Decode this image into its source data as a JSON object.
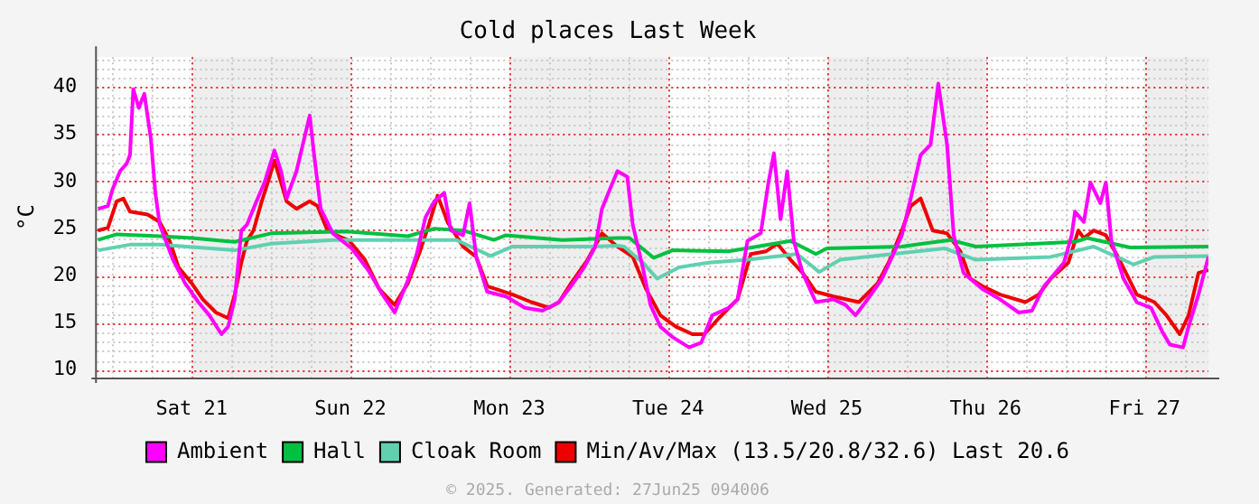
{
  "chart_data": {
    "type": "line",
    "title": "Cold places Last Week",
    "ylabel": "°C",
    "xlim": [
      "2025-06-20T09:40",
      "2025-06-27T09:40"
    ],
    "xticks": [
      {
        "value": "2025-06-21",
        "label": "Sat 21"
      },
      {
        "value": "2025-06-22",
        "label": "Sun 22"
      },
      {
        "value": "2025-06-23",
        "label": "Mon 23"
      },
      {
        "value": "2025-06-24",
        "label": "Tue 24"
      },
      {
        "value": "2025-06-25",
        "label": "Wed 25"
      },
      {
        "value": "2025-06-26",
        "label": "Thu 26"
      },
      {
        "value": "2025-06-27",
        "label": "Fri 27"
      }
    ],
    "ylim": [
      9.2,
      43.2
    ],
    "yticks": [
      10,
      15,
      20,
      25,
      30,
      35,
      40
    ],
    "grid": true,
    "legend": "bottom",
    "marker": "none",
    "line_style": "solid",
    "bands": [
      {
        "axis": "x",
        "from": "2025-06-21",
        "to": "2025-06-22",
        "color": "#eeeeee"
      },
      {
        "axis": "x",
        "from": "2025-06-23",
        "to": "2025-06-24",
        "color": "#eeeeee"
      },
      {
        "axis": "x",
        "from": "2025-06-25",
        "to": "2025-06-26",
        "color": "#eeeeee"
      },
      {
        "axis": "x",
        "from": "2025-06-27",
        "to": "2025-06-27T09:40",
        "color": "#eeeeee"
      }
    ],
    "annotations": [
      "© 2025. Generated: 27Jun25 094006"
    ],
    "series": [
      {
        "name": "Ambient",
        "color": "#ff00ff",
        "x": [
          "2025-06-20T09:50",
          "2025-06-20T11:20",
          "2025-06-20T12:00",
          "2025-06-20T13:10",
          "2025-06-20T14:10",
          "2025-06-20T14:40",
          "2025-06-20T15:10",
          "2025-06-20T16:00",
          "2025-06-20T16:50",
          "2025-06-20T17:50",
          "2025-06-20T18:30",
          "2025-06-20T19:10",
          "2025-06-20T21:10",
          "2025-06-20T23:00",
          "2025-06-21T01:00",
          "2025-06-21T02:40",
          "2025-06-21T04:30",
          "2025-06-21T05:30",
          "2025-06-21T06:30",
          "2025-06-21T07:30",
          "2025-06-21T08:20",
          "2025-06-21T09:40",
          "2025-06-21T11:00",
          "2025-06-21T12:30",
          "2025-06-21T13:30",
          "2025-06-21T14:20",
          "2025-06-21T15:50",
          "2025-06-21T17:50",
          "2025-06-21T18:30",
          "2025-06-21T19:30",
          "2025-06-21T21:20",
          "2025-06-22T00:10",
          "2025-06-22T02:40",
          "2025-06-22T04:50",
          "2025-06-22T06:40",
          "2025-06-22T08:40",
          "2025-06-22T10:00",
          "2025-06-22T11:20",
          "2025-06-22T12:40",
          "2025-06-22T14:10",
          "2025-06-22T15:10",
          "2025-06-22T17:00",
          "2025-06-22T18:00",
          "2025-06-22T19:00",
          "2025-06-22T20:40",
          "2025-06-22T23:30",
          "2025-06-23T02:20",
          "2025-06-23T05:00",
          "2025-06-23T07:30",
          "2025-06-23T09:20",
          "2025-06-23T11:20",
          "2025-06-23T13:00",
          "2025-06-23T14:00",
          "2025-06-23T15:20",
          "2025-06-23T16:20",
          "2025-06-23T17:50",
          "2025-06-23T18:40",
          "2025-06-23T20:10",
          "2025-06-23T21:20",
          "2025-06-23T22:50",
          "2025-06-24T00:40",
          "2025-06-24T03:10",
          "2025-06-24T05:00",
          "2025-06-24T06:40",
          "2025-06-24T09:10",
          "2025-06-24T10:30",
          "2025-06-24T12:00",
          "2025-06-24T14:00",
          "2025-06-24T15:10",
          "2025-06-24T16:00",
          "2025-06-24T17:00",
          "2025-06-24T18:00",
          "2025-06-24T19:00",
          "2025-06-24T20:20",
          "2025-06-24T22:20",
          "2025-06-25T01:00",
          "2025-06-25T02:50",
          "2025-06-25T04:20",
          "2025-06-25T05:50",
          "2025-06-25T08:10",
          "2025-06-25T09:20",
          "2025-06-25T11:20",
          "2025-06-25T12:40",
          "2025-06-25T14:10",
          "2025-06-25T15:40",
          "2025-06-25T16:50",
          "2025-06-25T18:10",
          "2025-06-25T19:10",
          "2025-06-25T20:40",
          "2025-06-25T23:30",
          "2025-06-26T02:10",
          "2025-06-26T05:00",
          "2025-06-26T07:00",
          "2025-06-26T08:50",
          "2025-06-26T11:50",
          "2025-06-26T13:00",
          "2025-06-26T13:30",
          "2025-06-26T14:50",
          "2025-06-26T15:50",
          "2025-06-26T17:20",
          "2025-06-26T18:10",
          "2025-06-26T19:00",
          "2025-06-26T20:50",
          "2025-06-26T22:50",
          "2025-06-27T01:00",
          "2025-06-27T02:40",
          "2025-06-27T03:50",
          "2025-06-27T05:50",
          "2025-06-27T06:40",
          "2025-06-27T08:10",
          "2025-06-27T09:40"
        ],
        "values": [
          27.1,
          27.4,
          29.1,
          31.1,
          31.9,
          32.8,
          39.8,
          37.8,
          39.3,
          34.5,
          28.8,
          25.4,
          21.7,
          19.2,
          17.2,
          15.8,
          13.8,
          14.6,
          17.5,
          24.8,
          25.4,
          27.7,
          29.9,
          33.3,
          31.1,
          28.2,
          31.1,
          37.0,
          32.8,
          27.1,
          24.5,
          22.9,
          20.6,
          18.0,
          16.1,
          19.5,
          22.3,
          26.2,
          27.9,
          28.8,
          24.8,
          24.3,
          27.7,
          22.0,
          18.3,
          17.8,
          16.6,
          16.3,
          17.2,
          18.9,
          20.9,
          23.1,
          27.1,
          29.4,
          31.1,
          30.5,
          25.4,
          20.9,
          16.9,
          14.6,
          13.5,
          12.4,
          12.9,
          15.8,
          16.6,
          17.5,
          23.7,
          24.5,
          29.9,
          33.0,
          26.0,
          31.1,
          23.7,
          20.3,
          17.2,
          17.5,
          16.9,
          15.8,
          17.2,
          19.5,
          21.2,
          24.3,
          28.2,
          32.8,
          33.9,
          40.4,
          33.9,
          24.3,
          20.3,
          18.6,
          17.5,
          16.1,
          16.3,
          18.9,
          21.4,
          24.3,
          26.8,
          25.7,
          29.9,
          27.7,
          29.9,
          23.7,
          19.7,
          17.2,
          16.6,
          14.1,
          12.7,
          12.4,
          14.6,
          18.0,
          22.0
        ]
      },
      {
        "name": "Hall",
        "color": "#00c040",
        "x": [
          "2025-06-20T09:50",
          "2025-06-20T12:40",
          "2025-06-20T19:10",
          "2025-06-21T00:00",
          "2025-06-21T06:30",
          "2025-06-21T12:00",
          "2025-06-21T23:20",
          "2025-06-22T08:40",
          "2025-06-22T12:40",
          "2025-06-22T17:00",
          "2025-06-22T21:40",
          "2025-06-22T23:30",
          "2025-06-23T08:00",
          "2025-06-23T16:20",
          "2025-06-23T18:10",
          "2025-06-23T21:50",
          "2025-06-24T00:40",
          "2025-06-24T09:10",
          "2025-06-24T18:30",
          "2025-06-24T22:20",
          "2025-06-25T00:00",
          "2025-06-25T11:20",
          "2025-06-25T18:40",
          "2025-06-25T22:30",
          "2025-06-26T13:30",
          "2025-06-26T15:20",
          "2025-06-26T21:50",
          "2025-06-27T09:40"
        ],
        "values": [
          23.8,
          24.4,
          24.2,
          24.0,
          23.6,
          24.5,
          24.7,
          24.2,
          25.0,
          24.8,
          23.8,
          24.3,
          23.8,
          24.0,
          24.0,
          21.9,
          22.7,
          22.6,
          23.7,
          22.3,
          22.9,
          23.1,
          23.8,
          23.1,
          23.6,
          24.0,
          23.0,
          23.1
        ]
      },
      {
        "name": "Cloak Room",
        "color": "#60d0b0",
        "x": [
          "2025-06-20T09:50",
          "2025-06-20T14:40",
          "2025-06-20T19:10",
          "2025-06-21T06:30",
          "2025-06-21T12:00",
          "2025-06-21T21:20",
          "2025-06-22T10:30",
          "2025-06-22T16:00",
          "2025-06-22T21:10",
          "2025-06-23T00:30",
          "2025-06-23T12:40",
          "2025-06-23T16:20",
          "2025-06-23T17:20",
          "2025-06-23T20:10",
          "2025-06-23T22:20",
          "2025-06-24T01:40",
          "2025-06-24T06:10",
          "2025-06-24T12:00",
          "2025-06-24T19:30",
          "2025-06-24T22:50",
          "2025-06-25T02:00",
          "2025-06-25T17:50",
          "2025-06-25T22:30",
          "2025-06-26T09:50",
          "2025-06-26T16:20",
          "2025-06-26T22:20",
          "2025-06-27T01:30",
          "2025-06-27T09:40"
        ],
        "values": [
          22.7,
          23.3,
          23.3,
          22.7,
          23.4,
          23.8,
          23.8,
          23.8,
          22.1,
          23.1,
          23.1,
          23.2,
          23.1,
          21.4,
          19.7,
          20.9,
          21.4,
          21.7,
          22.3,
          20.4,
          21.7,
          22.9,
          21.7,
          22.0,
          23.1,
          21.2,
          22.0,
          22.1
        ]
      },
      {
        "name": "Min/Av/Max (13.5/20.8/32.6) Last 20.6",
        "color": "#ee0000",
        "x": [
          "2025-06-20T09:50",
          "2025-06-20T11:20",
          "2025-06-20T12:00",
          "2025-06-20T12:40",
          "2025-06-20T13:40",
          "2025-06-20T14:40",
          "2025-06-20T17:20",
          "2025-06-20T19:10",
          "2025-06-20T20:40",
          "2025-06-20T22:00",
          "2025-06-21T00:00",
          "2025-06-21T01:40",
          "2025-06-21T03:40",
          "2025-06-21T05:30",
          "2025-06-21T06:30",
          "2025-06-21T07:30",
          "2025-06-21T08:20",
          "2025-06-21T09:20",
          "2025-06-21T10:30",
          "2025-06-21T11:30",
          "2025-06-21T12:30",
          "2025-06-21T13:30",
          "2025-06-21T14:20",
          "2025-06-21T15:50",
          "2025-06-21T17:50",
          "2025-06-21T19:00",
          "2025-06-21T20:20",
          "2025-06-21T21:50",
          "2025-06-21T23:50",
          "2025-06-22T02:10",
          "2025-06-22T04:20",
          "2025-06-22T06:40",
          "2025-06-22T08:40",
          "2025-06-22T10:30",
          "2025-06-22T11:50",
          "2025-06-22T13:10",
          "2025-06-22T14:40",
          "2025-06-22T17:00",
          "2025-06-22T19:00",
          "2025-06-22T20:40",
          "2025-06-23T00:30",
          "2025-06-23T03:20",
          "2025-06-23T06:00",
          "2025-06-23T07:30",
          "2025-06-23T09:20",
          "2025-06-23T11:50",
          "2025-06-23T14:00",
          "2025-06-23T16:20",
          "2025-06-23T18:40",
          "2025-06-23T20:40",
          "2025-06-23T22:50",
          "2025-06-24T01:10",
          "2025-06-24T03:40",
          "2025-06-24T05:30",
          "2025-06-24T07:40",
          "2025-06-24T10:30",
          "2025-06-24T12:30",
          "2025-06-24T14:50",
          "2025-06-24T16:30",
          "2025-06-24T18:30",
          "2025-06-24T20:20",
          "2025-06-24T22:20",
          "2025-06-25T01:00",
          "2025-06-25T04:50",
          "2025-06-25T07:40",
          "2025-06-25T09:20",
          "2025-06-25T11:20",
          "2025-06-25T12:40",
          "2025-06-25T14:10",
          "2025-06-25T16:00",
          "2025-06-25T18:10",
          "2025-06-25T20:10",
          "2025-06-25T21:40",
          "2025-06-25T23:30",
          "2025-06-26T02:10",
          "2025-06-26T06:00",
          "2025-06-26T08:00",
          "2025-06-26T09:50",
          "2025-06-26T12:30",
          "2025-06-26T14:00",
          "2025-06-26T14:50",
          "2025-06-26T16:20",
          "2025-06-26T18:10",
          "2025-06-26T20:00",
          "2025-06-26T22:50",
          "2025-06-27T01:30",
          "2025-06-27T03:20",
          "2025-06-27T05:20",
          "2025-06-27T06:40",
          "2025-06-27T08:10",
          "2025-06-27T09:40"
        ],
        "values": [
          24.8,
          25.1,
          26.5,
          27.9,
          28.2,
          26.8,
          26.5,
          25.7,
          23.7,
          20.9,
          19.2,
          17.5,
          16.1,
          15.5,
          18.0,
          21.4,
          23.7,
          24.8,
          27.7,
          29.9,
          32.2,
          29.9,
          27.9,
          27.1,
          27.9,
          27.4,
          25.1,
          24.3,
          23.7,
          21.7,
          18.6,
          16.9,
          19.2,
          22.6,
          25.4,
          28.5,
          25.7,
          23.1,
          22.0,
          18.9,
          18.0,
          17.2,
          16.6,
          17.2,
          19.2,
          21.7,
          24.5,
          23.1,
          22.0,
          18.6,
          15.8,
          14.6,
          13.8,
          13.8,
          15.5,
          17.5,
          22.3,
          22.6,
          23.4,
          21.7,
          20.3,
          18.3,
          17.8,
          17.2,
          19.2,
          21.4,
          24.8,
          27.4,
          28.2,
          24.8,
          24.5,
          22.6,
          19.7,
          18.9,
          18.0,
          17.2,
          18.0,
          19.7,
          21.4,
          24.8,
          24.0,
          24.8,
          24.3,
          22.0,
          18.0,
          17.2,
          15.8,
          13.8,
          15.8,
          20.3,
          20.6
        ]
      }
    ]
  }
}
